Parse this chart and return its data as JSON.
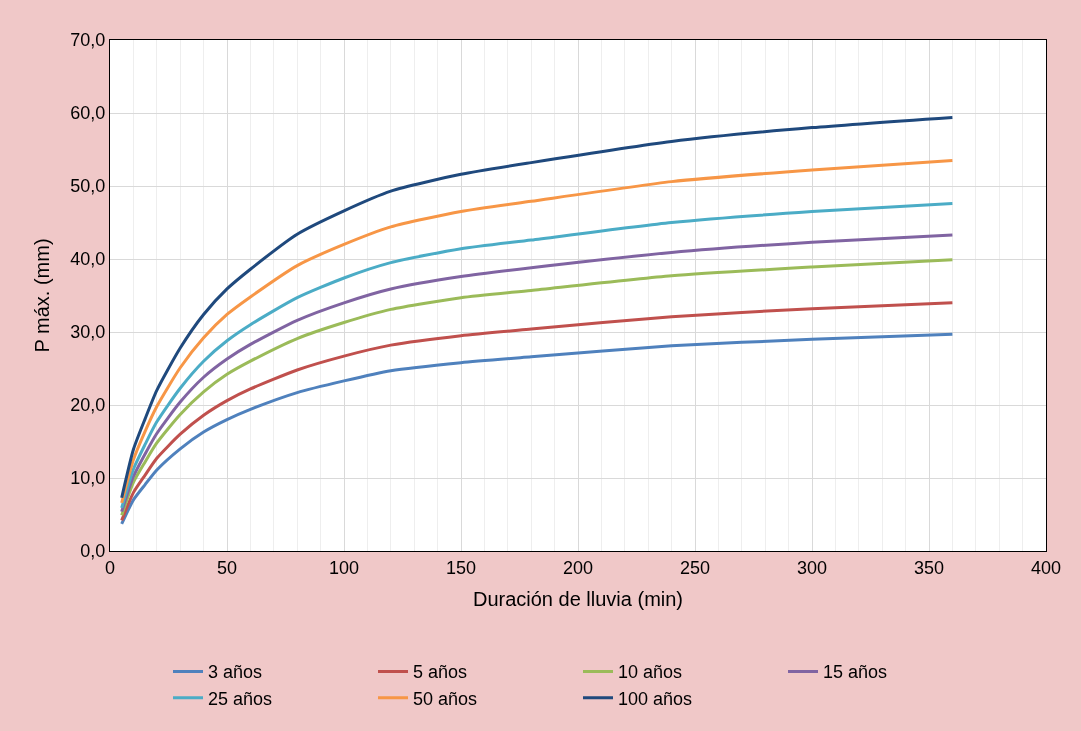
{
  "chart_data": {
    "type": "line",
    "xlabel": "Duración de lluvia (min)",
    "ylabel": "P máx. (mm)",
    "x": [
      5,
      10,
      15,
      20,
      30,
      40,
      50,
      60,
      80,
      100,
      120,
      150,
      180,
      240,
      300,
      360
    ],
    "series": [
      {
        "name": "3 años",
        "color": "#4f81bd",
        "values": [
          3.7,
          7.0,
          9.1,
          11.1,
          14.0,
          16.3,
          18.0,
          19.4,
          21.7,
          23.3,
          24.7,
          25.8,
          26.6,
          28.1,
          29.0,
          29.7
        ]
      },
      {
        "name": "5 años",
        "color": "#c0504d",
        "values": [
          4.2,
          8.0,
          10.4,
          12.7,
          16.0,
          18.6,
          20.6,
          22.2,
          24.8,
          26.7,
          28.2,
          29.5,
          30.4,
          32.1,
          33.2,
          34.0
        ]
      },
      {
        "name": "10 años",
        "color": "#9bbb59",
        "values": [
          4.9,
          9.4,
          12.2,
          14.8,
          18.7,
          21.8,
          24.2,
          26.0,
          29.1,
          31.3,
          33.1,
          34.7,
          35.7,
          37.7,
          38.9,
          39.9
        ]
      },
      {
        "name": "15 años",
        "color": "#8064a2",
        "values": [
          5.4,
          10.2,
          13.3,
          16.1,
          20.4,
          23.8,
          26.3,
          28.3,
          31.6,
          34.0,
          35.9,
          37.6,
          38.8,
          40.9,
          42.3,
          43.3
        ]
      },
      {
        "name": "25 años",
        "color": "#4bacc6",
        "values": [
          5.9,
          11.2,
          14.6,
          17.7,
          22.3,
          26.0,
          28.8,
          31.0,
          34.7,
          37.4,
          39.5,
          41.4,
          42.6,
          45.0,
          46.5,
          47.6
        ]
      },
      {
        "name": "50 años",
        "color": "#f79646",
        "values": [
          6.6,
          12.5,
          16.4,
          19.8,
          25.1,
          29.2,
          32.4,
          34.8,
          39.1,
          42.0,
          44.4,
          46.5,
          47.9,
          50.6,
          52.2,
          53.5
        ]
      },
      {
        "name": "100 años",
        "color": "#1f497d",
        "values": [
          7.3,
          13.9,
          18.1,
          22.0,
          27.8,
          32.4,
          35.9,
          38.6,
          43.4,
          46.6,
          49.3,
          51.6,
          53.2,
          56.1,
          58.0,
          59.4
        ]
      }
    ],
    "xlim": [
      0,
      400
    ],
    "xticks": [
      0,
      50,
      100,
      150,
      200,
      250,
      300,
      350,
      400
    ],
    "ylim": [
      0,
      70
    ],
    "yticks": [
      {
        "value": 0,
        "label": "0,0"
      },
      {
        "value": 10,
        "label": "10,0"
      },
      {
        "value": 20,
        "label": "20,0"
      },
      {
        "value": 30,
        "label": "30,0"
      },
      {
        "value": 40,
        "label": "40,0"
      },
      {
        "value": 50,
        "label": "50,0"
      },
      {
        "value": 60,
        "label": "60,0"
      },
      {
        "value": 70,
        "label": "70,0"
      }
    ],
    "grid": true,
    "legend": "bottom",
    "marker": "none",
    "line_style": "solid"
  }
}
